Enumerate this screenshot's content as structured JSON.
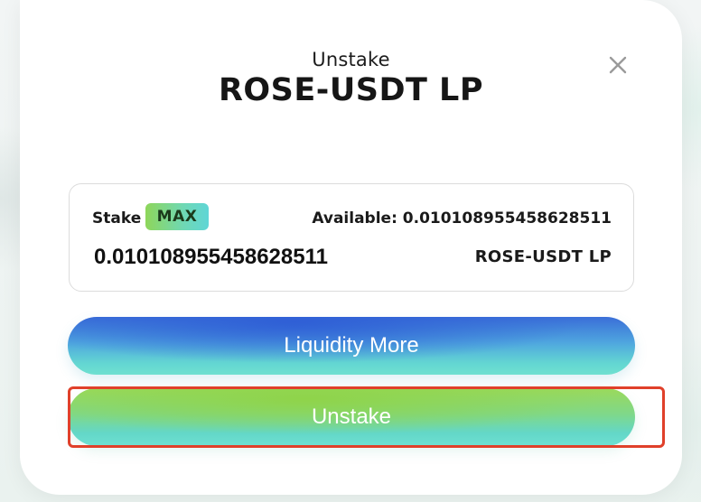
{
  "modal": {
    "subtitle": "Unstake",
    "title": "ROSE-USDT LP"
  },
  "icons": {
    "close": "close-icon"
  },
  "stake_card": {
    "stake_label": "Stake",
    "max_label": "MAX",
    "available_text": "Available: 0.010108955458628511",
    "amount_value": "0.010108955458628511",
    "token_unit": "ROSE-USDT LP"
  },
  "buttons": {
    "liquidity_more": "Liquidity More",
    "unstake": "Unstake"
  },
  "colors": {
    "highlight_border": "#e0402a",
    "liquidity_gradient_top": "#3a6ed8",
    "liquidity_gradient_bottom": "#6fe0d0",
    "unstake_gradient_top": "#9bd95a",
    "unstake_gradient_bottom": "#6ee0d2"
  }
}
